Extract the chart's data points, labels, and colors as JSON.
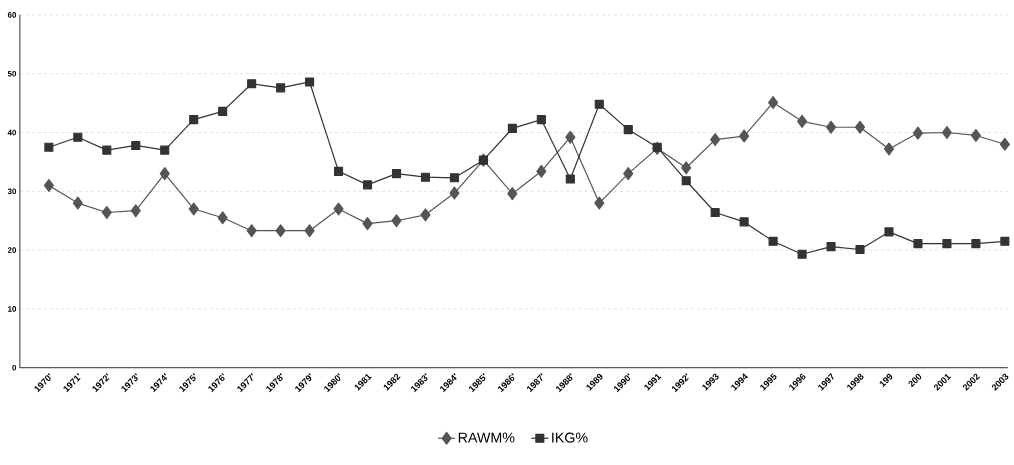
{
  "chart_data": {
    "type": "line",
    "categories": [
      "1970'",
      "1971'",
      "1972'",
      "1973'",
      "1974'",
      "1975'",
      "1976'",
      "1977'",
      "1978'",
      "1979'",
      "1980'",
      "1981",
      "1982",
      "1983'",
      "1984'",
      "1985'",
      "1986'",
      "1987'",
      "1988'",
      "1989",
      "1990'",
      "1991",
      "1992'",
      "1993",
      "1994",
      "1995",
      "1996",
      "1997",
      "1998",
      "199",
      "200",
      "2001",
      "2002",
      "2003"
    ],
    "series": [
      {
        "name": "RAWM%",
        "color": "#555555",
        "marker": "diamond",
        "values": [
          31,
          28,
          26.4,
          26.7,
          33,
          27,
          25.5,
          23.3,
          23.3,
          23.3,
          27,
          24.5,
          25,
          26,
          29.7,
          35.3,
          29.6,
          33.4,
          39.2,
          28,
          33,
          37.3,
          34,
          38.8,
          39.4,
          45.1,
          41.9,
          40.9,
          40.9,
          37.2,
          39.9,
          40,
          39.5,
          38
        ]
      },
      {
        "name": "IKG%",
        "color": "#333333",
        "marker": "square",
        "values": [
          37.5,
          39.2,
          37,
          37.8,
          37,
          42.2,
          43.6,
          48.3,
          47.6,
          48.6,
          33.4,
          31.1,
          33,
          32.4,
          32.3,
          35.3,
          40.7,
          42.2,
          32.1,
          44.8,
          40.5,
          37.5,
          31.8,
          26.4,
          24.8,
          21.5,
          19.3,
          20.6,
          20.1,
          23.1,
          21.1,
          21.1,
          21.1,
          21.5
        ]
      }
    ],
    "ylim": [
      0,
      60
    ],
    "yticks": [
      0,
      10,
      20,
      30,
      40,
      50,
      60
    ],
    "grid": "y",
    "legend": "bottom",
    "line_style": "solid"
  }
}
